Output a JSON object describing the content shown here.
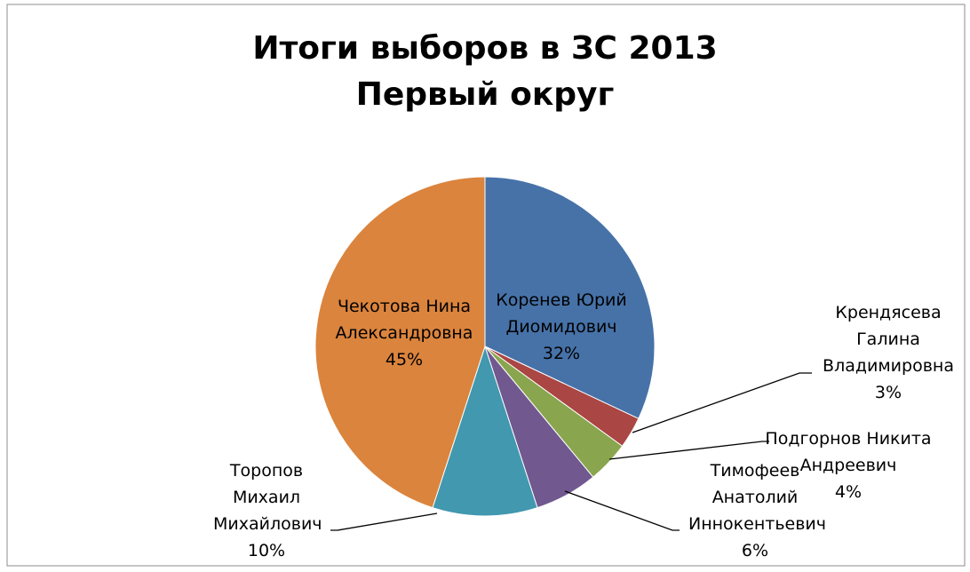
{
  "chart_data": {
    "type": "pie",
    "title": "Итоги выборов в ЗС 2013",
    "subtitle": "Первый округ",
    "categories": [
      "Коренев Юрий Диомидович",
      "Крендясева Галина Владимировна",
      "Подгорнов Никита Андреевич",
      "Тимофеев Анатолий Иннокентьевич",
      "Торопов Михаил Михайлович",
      "Чекотова Нина Александровна"
    ],
    "values": [
      32,
      3,
      4,
      6,
      10,
      45
    ],
    "value_labels": [
      "32%",
      "3%",
      "4%",
      "6%",
      "10%",
      "45%"
    ],
    "colors": [
      "#4672a8",
      "#aa4643",
      "#89a54e",
      "#71588f",
      "#4198af",
      "#db843d"
    ]
  }
}
